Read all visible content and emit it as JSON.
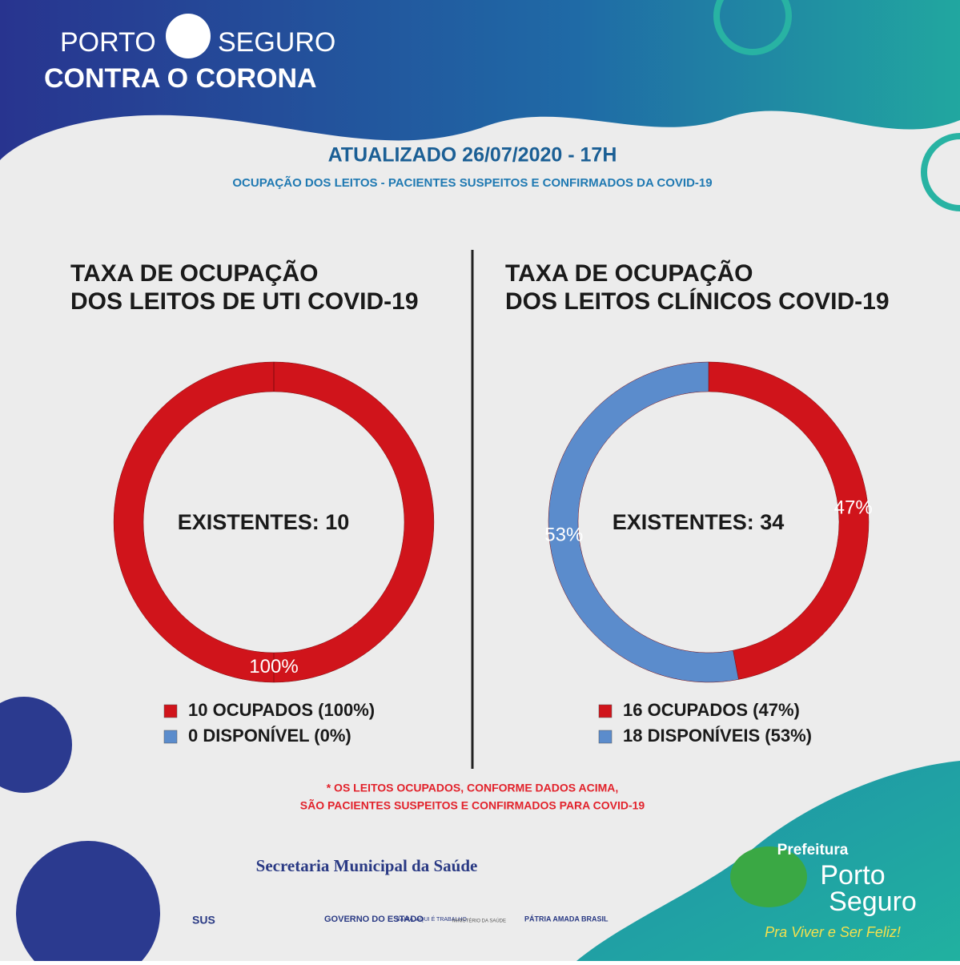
{
  "header": {
    "brand_left": "PORTO",
    "brand_right": "SEGURO",
    "brand_bottom": "CONTRA O CORONA",
    "updated": "ATUALIZADO 26/07/2020 - 17H",
    "subtitle": "OCUPAÇÃO DOS LEITOS - PACIENTES SUSPEITOS E CONFIRMADOS DA COVID-19"
  },
  "chart_data": [
    {
      "type": "donut",
      "title_lines": [
        "TAXA DE OCUPAÇÃO",
        "DOS LEITOS DE UTI COVID-19"
      ],
      "center_label": "EXISTENTES: 10",
      "categories": [
        "10 OCUPADOS (100%)",
        "0 DISPONÍVEL (0%)"
      ],
      "values": [
        100,
        0
      ],
      "value_labels": [
        "100%",
        null
      ],
      "colors": [
        "#d0141b",
        "#5b8ccc"
      ]
    },
    {
      "type": "donut",
      "title_lines": [
        "TAXA DE OCUPAÇÃO",
        "DOS LEITOS CLÍNICOS COVID-19"
      ],
      "center_label": "EXISTENTES: 34",
      "categories": [
        "16 OCUPADOS (47%)",
        "18 DISPONÍVEIS (53%)"
      ],
      "values": [
        47,
        53
      ],
      "value_labels": [
        "47%",
        "53%"
      ],
      "colors": [
        "#d0141b",
        "#5b8ccc"
      ]
    }
  ],
  "footnote": [
    "* OS LEITOS OCUPADOS, CONFORME DADOS ACIMA,",
    "SÃO PACIENTES SUSPEITOS E CONFIRMADOS PARA COVID-19"
  ],
  "footer": {
    "secretaria": "Secretaria Municipal da Saúde",
    "sus": "SUS",
    "governo": "GOVERNO DO ESTADO",
    "bahia": "BAHIA, AQUI É TRABALHO.",
    "ministerio": "MINISTÉRIO DA SAÚDE",
    "brasil": "PÁTRIA AMADA BRASIL",
    "prefeitura": "Prefeitura",
    "porto": "Porto",
    "seguro": "Seguro",
    "slogan": "Pra Viver e Ser Feliz!"
  }
}
